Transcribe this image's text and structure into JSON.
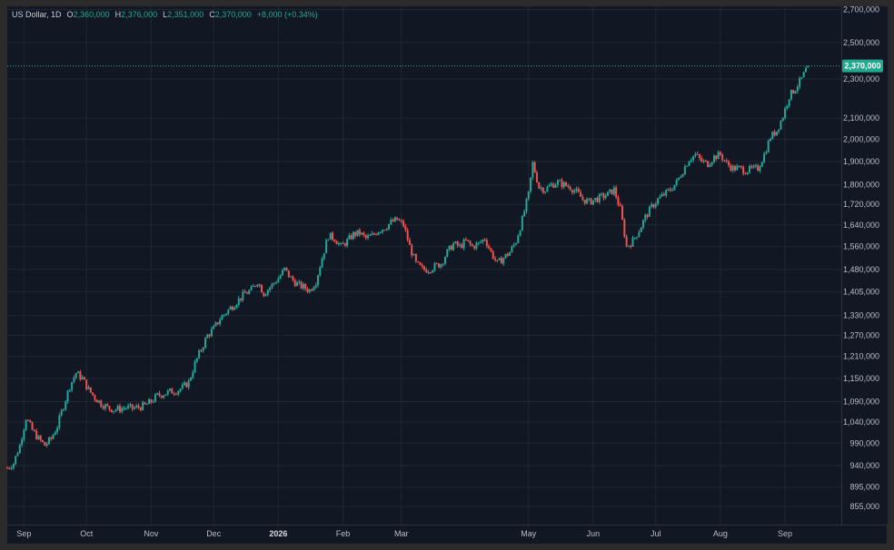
{
  "legend": {
    "symbol": "US Dollar, 1D",
    "o_label": "O",
    "o_value": "2,360,000",
    "h_label": "H",
    "h_value": "2,376,000",
    "l_label": "L",
    "l_value": "2,351,000",
    "c_label": "C",
    "c_value": "2,370,000",
    "change": "+8,000 (+0.34%)"
  },
  "colors": {
    "up": "#26a69a",
    "down": "#ef5350",
    "grid": "#1e2833",
    "background": "#111823",
    "last_price": "#22a88e"
  },
  "chart_data": {
    "type": "candlestick",
    "title": "",
    "series_name": "",
    "scale": "log",
    "ylim": [
      820000,
      2720000
    ],
    "xlim": [
      "2025-08-24",
      "2026-09-28"
    ],
    "last_price": 2370000,
    "last_price_label": "2,370,000",
    "y_ticks": [
      {
        "value": 2700000,
        "label": "2,700,000"
      },
      {
        "value": 2500000,
        "label": "2,500,000"
      },
      {
        "value": 2300000,
        "label": "2,300,000"
      },
      {
        "value": 2100000,
        "label": "2,100,000"
      },
      {
        "value": 2000000,
        "label": "2,000,000"
      },
      {
        "value": 1900000,
        "label": "1,900,000"
      },
      {
        "value": 1800000,
        "label": "1,800,000"
      },
      {
        "value": 1720000,
        "label": "1,720,000"
      },
      {
        "value": 1640000,
        "label": "1,640,000"
      },
      {
        "value": 1560000,
        "label": "1,560,000"
      },
      {
        "value": 1480000,
        "label": "1,480,000"
      },
      {
        "value": 1405000,
        "label": "1,405,000"
      },
      {
        "value": 1330000,
        "label": "1,330,000"
      },
      {
        "value": 1270000,
        "label": "1,270,000"
      },
      {
        "value": 1210000,
        "label": "1,210,000"
      },
      {
        "value": 1150000,
        "label": "1,150,000"
      },
      {
        "value": 1090000,
        "label": "1,090,000"
      },
      {
        "value": 1040000,
        "label": "1,040,000"
      },
      {
        "value": 990000,
        "label": "990,000"
      },
      {
        "value": 940000,
        "label": "940,000"
      },
      {
        "value": 895000,
        "label": "895,000"
      },
      {
        "value": 855000,
        "label": "855,000"
      }
    ],
    "x_ticks": [
      {
        "date": "2025-09-01",
        "label": "Sep",
        "bold": false
      },
      {
        "date": "2025-10-01",
        "label": "Oct",
        "bold": false
      },
      {
        "date": "2025-11-01",
        "label": "Nov",
        "bold": false
      },
      {
        "date": "2025-12-01",
        "label": "Dec",
        "bold": false
      },
      {
        "date": "2026-01-01",
        "label": "2026",
        "bold": true
      },
      {
        "date": "2026-02-01",
        "label": "Feb",
        "bold": false
      },
      {
        "date": "2026-03-01",
        "label": "Mar",
        "bold": false
      },
      {
        "date": "2026-05-01",
        "label": "May",
        "bold": false
      },
      {
        "date": "2026-06-01",
        "label": "Jun",
        "bold": false
      },
      {
        "date": "2026-07-01",
        "label": "Jul",
        "bold": false
      },
      {
        "date": "2026-08-01",
        "label": "Aug",
        "bold": false
      },
      {
        "date": "2026-09-01",
        "label": "Sep",
        "bold": false
      }
    ],
    "close_path": [
      [
        "2025-08-24",
        935000
      ],
      [
        "2025-08-27",
        945000
      ],
      [
        "2025-08-30",
        985000
      ],
      [
        "2025-09-02",
        1050000
      ],
      [
        "2025-09-05",
        1020000
      ],
      [
        "2025-09-08",
        1000000
      ],
      [
        "2025-09-11",
        985000
      ],
      [
        "2025-09-14",
        1000000
      ],
      [
        "2025-09-17",
        1030000
      ],
      [
        "2025-09-20",
        1080000
      ],
      [
        "2025-09-23",
        1130000
      ],
      [
        "2025-09-26",
        1165000
      ],
      [
        "2025-09-29",
        1150000
      ],
      [
        "2025-10-02",
        1120000
      ],
      [
        "2025-10-05",
        1100000
      ],
      [
        "2025-10-08",
        1085000
      ],
      [
        "2025-10-11",
        1075000
      ],
      [
        "2025-10-14",
        1070000
      ],
      [
        "2025-10-17",
        1072000
      ],
      [
        "2025-10-20",
        1075000
      ],
      [
        "2025-10-23",
        1073000
      ],
      [
        "2025-10-26",
        1076000
      ],
      [
        "2025-10-29",
        1080000
      ],
      [
        "2025-11-01",
        1090000
      ],
      [
        "2025-11-04",
        1105000
      ],
      [
        "2025-11-07",
        1110000
      ],
      [
        "2025-11-10",
        1115000
      ],
      [
        "2025-11-13",
        1118000
      ],
      [
        "2025-11-16",
        1125000
      ],
      [
        "2025-11-19",
        1140000
      ],
      [
        "2025-11-22",
        1190000
      ],
      [
        "2025-11-25",
        1230000
      ],
      [
        "2025-11-28",
        1270000
      ],
      [
        "2025-12-01",
        1290000
      ],
      [
        "2025-12-04",
        1320000
      ],
      [
        "2025-12-07",
        1340000
      ],
      [
        "2025-12-10",
        1360000
      ],
      [
        "2025-12-13",
        1380000
      ],
      [
        "2025-12-16",
        1400000
      ],
      [
        "2025-12-19",
        1410000
      ],
      [
        "2025-12-22",
        1440000
      ],
      [
        "2025-12-25",
        1400000
      ],
      [
        "2025-12-28",
        1420000
      ],
      [
        "2026-01-01",
        1450000
      ],
      [
        "2026-01-04",
        1480000
      ],
      [
        "2026-01-07",
        1450000
      ],
      [
        "2026-01-10",
        1430000
      ],
      [
        "2026-01-13",
        1420000
      ],
      [
        "2026-01-16",
        1410000
      ],
      [
        "2026-01-19",
        1440000
      ],
      [
        "2026-01-22",
        1520000
      ],
      [
        "2026-01-25",
        1600000
      ],
      [
        "2026-01-28",
        1590000
      ],
      [
        "2026-01-31",
        1560000
      ],
      [
        "2026-02-03",
        1580000
      ],
      [
        "2026-02-06",
        1605000
      ],
      [
        "2026-02-09",
        1610000
      ],
      [
        "2026-02-12",
        1590000
      ],
      [
        "2026-02-15",
        1600000
      ],
      [
        "2026-02-18",
        1620000
      ],
      [
        "2026-02-21",
        1630000
      ],
      [
        "2026-02-24",
        1650000
      ],
      [
        "2026-02-27",
        1660000
      ],
      [
        "2026-03-02",
        1640000
      ],
      [
        "2026-03-05",
        1560000
      ],
      [
        "2026-03-08",
        1500000
      ],
      [
        "2026-03-11",
        1480000
      ],
      [
        "2026-03-14",
        1480000
      ],
      [
        "2026-03-17",
        1490000
      ],
      [
        "2026-03-20",
        1500000
      ],
      [
        "2026-03-23",
        1540000
      ],
      [
        "2026-03-26",
        1570000
      ],
      [
        "2026-03-29",
        1560000
      ],
      [
        "2026-04-01",
        1580000
      ],
      [
        "2026-04-04",
        1560000
      ],
      [
        "2026-04-07",
        1570000
      ],
      [
        "2026-04-10",
        1590000
      ],
      [
        "2026-04-13",
        1540000
      ],
      [
        "2026-04-16",
        1500000
      ],
      [
        "2026-04-19",
        1520000
      ],
      [
        "2026-04-22",
        1540000
      ],
      [
        "2026-04-25",
        1580000
      ],
      [
        "2026-04-28",
        1660000
      ],
      [
        "2026-05-01",
        1760000
      ],
      [
        "2026-05-03",
        1890000
      ],
      [
        "2026-05-06",
        1790000
      ],
      [
        "2026-05-09",
        1780000
      ],
      [
        "2026-05-12",
        1800000
      ],
      [
        "2026-05-15",
        1810000
      ],
      [
        "2026-05-18",
        1800000
      ],
      [
        "2026-05-21",
        1790000
      ],
      [
        "2026-05-24",
        1770000
      ],
      [
        "2026-05-27",
        1740000
      ],
      [
        "2026-05-30",
        1730000
      ],
      [
        "2026-06-02",
        1740000
      ],
      [
        "2026-06-05",
        1750000
      ],
      [
        "2026-06-08",
        1760000
      ],
      [
        "2026-06-11",
        1780000
      ],
      [
        "2026-06-14",
        1700000
      ],
      [
        "2026-06-17",
        1560000
      ],
      [
        "2026-06-20",
        1580000
      ],
      [
        "2026-06-23",
        1620000
      ],
      [
        "2026-06-26",
        1670000
      ],
      [
        "2026-06-29",
        1710000
      ],
      [
        "2026-07-02",
        1740000
      ],
      [
        "2026-07-05",
        1760000
      ],
      [
        "2026-07-08",
        1780000
      ],
      [
        "2026-07-11",
        1810000
      ],
      [
        "2026-07-14",
        1860000
      ],
      [
        "2026-07-17",
        1910000
      ],
      [
        "2026-07-20",
        1930000
      ],
      [
        "2026-07-23",
        1900000
      ],
      [
        "2026-07-26",
        1890000
      ],
      [
        "2026-07-29",
        1920000
      ],
      [
        "2026-08-01",
        1930000
      ],
      [
        "2026-08-04",
        1890000
      ],
      [
        "2026-08-07",
        1870000
      ],
      [
        "2026-08-10",
        1870000
      ],
      [
        "2026-08-13",
        1860000
      ],
      [
        "2026-08-16",
        1865000
      ],
      [
        "2026-08-19",
        1870000
      ],
      [
        "2026-08-22",
        1930000
      ],
      [
        "2026-08-25",
        2010000
      ],
      [
        "2026-08-28",
        2040000
      ],
      [
        "2026-08-31",
        2110000
      ],
      [
        "2026-09-03",
        2210000
      ],
      [
        "2026-09-06",
        2250000
      ],
      [
        "2026-09-09",
        2300000
      ],
      [
        "2026-09-12",
        2370000
      ]
    ]
  }
}
